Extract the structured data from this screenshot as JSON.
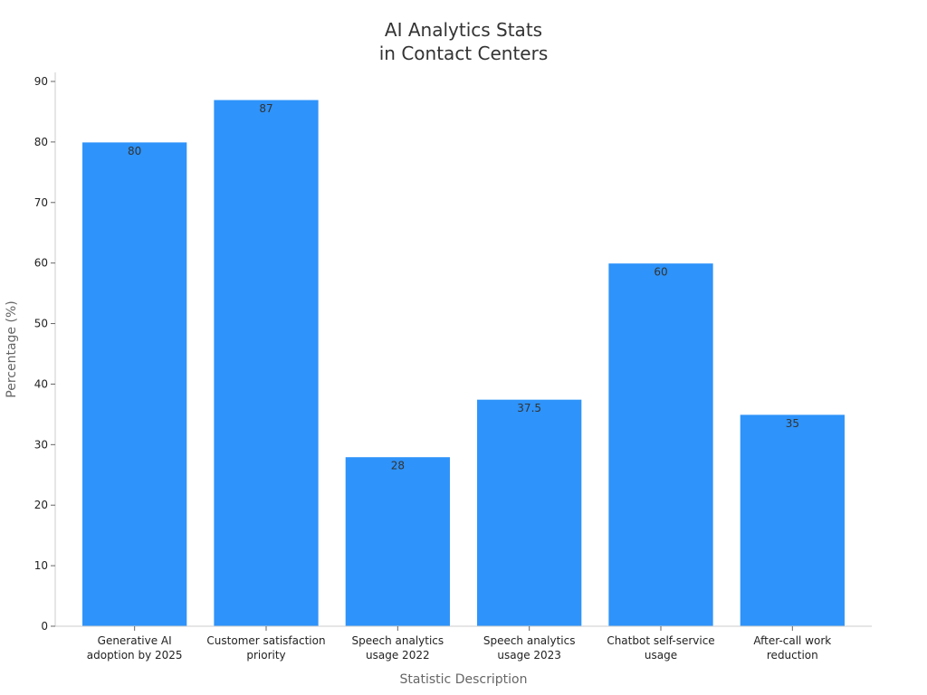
{
  "chart_data": {
    "type": "bar",
    "title": [
      "AI Analytics Stats",
      "in Contact Centers"
    ],
    "xlabel": "Statistic Description",
    "ylabel": "Percentage (%)",
    "categories": [
      [
        "Generative AI",
        "adoption by 2025"
      ],
      [
        "Customer satisfaction",
        "priority"
      ],
      [
        "Speech analytics",
        "usage 2022"
      ],
      [
        "Speech analytics",
        "usage 2023"
      ],
      [
        "Chatbot self-service",
        "usage"
      ],
      [
        "After-call work",
        "reduction"
      ]
    ],
    "values": [
      80,
      87,
      28,
      37.5,
      60,
      35
    ],
    "data_labels": [
      "80",
      "87",
      "28",
      "37.5",
      "60",
      "35"
    ],
    "ylim": [
      0,
      90
    ],
    "yticks": [
      0,
      10,
      20,
      30,
      40,
      50,
      60,
      70,
      80,
      90
    ],
    "grid": false,
    "bar_color": "#2E93FA"
  }
}
